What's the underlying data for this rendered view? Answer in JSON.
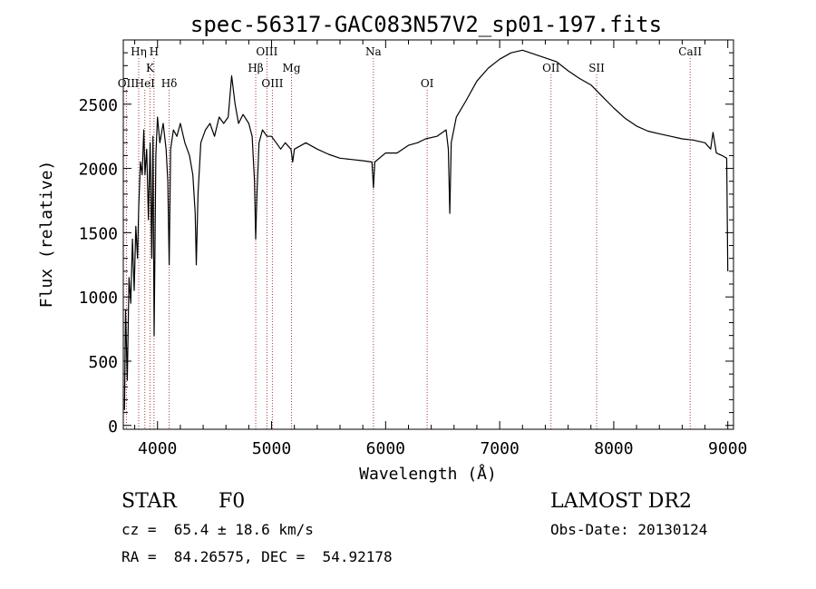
{
  "chart_data": {
    "type": "line",
    "title": "spec-56317-GAC083N57V2_sp01-197.fits",
    "xlabel": "Wavelength (Å)",
    "ylabel": "Flux (relative)",
    "xlim": [
      3700,
      9050
    ],
    "ylim": [
      -30,
      3000
    ],
    "xticks": [
      4000,
      5000,
      6000,
      7000,
      8000,
      9000
    ],
    "yticks": [
      0,
      500,
      1000,
      1500,
      2000,
      2500
    ],
    "grid": false,
    "line_color": "#000000",
    "marker_color": "#a33a3a",
    "lines": [
      {
        "label": "OII",
        "x": 3727,
        "row": 3
      },
      {
        "label": "Hη",
        "x": 3835,
        "row": 1
      },
      {
        "label": "HeI",
        "x": 3889,
        "row": 3
      },
      {
        "label": "K",
        "x": 3934,
        "row": 2
      },
      {
        "label": "H",
        "x": 3969,
        "row": 1
      },
      {
        "label": "Hδ",
        "x": 4102,
        "row": 3
      },
      {
        "label": "Hβ",
        "x": 4861,
        "row": 2
      },
      {
        "label": "OIII",
        "x": 4959,
        "row": 1
      },
      {
        "label": "OIII",
        "x": 5007,
        "row": 3
      },
      {
        "label": "Mg",
        "x": 5175,
        "row": 2
      },
      {
        "label": "Na",
        "x": 5893,
        "row": 1
      },
      {
        "label": "OI",
        "x": 6364,
        "row": 3
      },
      {
        "label": "OII",
        "x": 7450,
        "row": 2
      },
      {
        "label": "SII",
        "x": 7850,
        "row": 2
      },
      {
        "label": "CaII",
        "x": 8670,
        "row": 1
      }
    ],
    "series": [
      {
        "points": [
          [
            3710,
            120
          ],
          [
            3720,
            900
          ],
          [
            3735,
            350
          ],
          [
            3750,
            1150
          ],
          [
            3765,
            950
          ],
          [
            3780,
            1450
          ],
          [
            3795,
            1050
          ],
          [
            3810,
            1550
          ],
          [
            3825,
            1300
          ],
          [
            3835,
            1700
          ],
          [
            3850,
            2050
          ],
          [
            3865,
            1950
          ],
          [
            3880,
            2300
          ],
          [
            3890,
            1950
          ],
          [
            3905,
            2150
          ],
          [
            3920,
            1600
          ],
          [
            3935,
            2200
          ],
          [
            3950,
            1300
          ],
          [
            3960,
            2250
          ],
          [
            3970,
            700
          ],
          [
            3985,
            2100
          ],
          [
            4000,
            2400
          ],
          [
            4020,
            2200
          ],
          [
            4050,
            2350
          ],
          [
            4075,
            2150
          ],
          [
            4090,
            1900
          ],
          [
            4102,
            1250
          ],
          [
            4115,
            2150
          ],
          [
            4140,
            2300
          ],
          [
            4170,
            2250
          ],
          [
            4200,
            2350
          ],
          [
            4240,
            2200
          ],
          [
            4280,
            2100
          ],
          [
            4310,
            1950
          ],
          [
            4330,
            1650
          ],
          [
            4340,
            1250
          ],
          [
            4355,
            1800
          ],
          [
            4380,
            2200
          ],
          [
            4420,
            2300
          ],
          [
            4460,
            2350
          ],
          [
            4500,
            2250
          ],
          [
            4540,
            2400
          ],
          [
            4580,
            2350
          ],
          [
            4620,
            2400
          ],
          [
            4650,
            2720
          ],
          [
            4680,
            2500
          ],
          [
            4710,
            2350
          ],
          [
            4750,
            2420
          ],
          [
            4800,
            2350
          ],
          [
            4830,
            2250
          ],
          [
            4850,
            1900
          ],
          [
            4861,
            1450
          ],
          [
            4872,
            1800
          ],
          [
            4890,
            2200
          ],
          [
            4920,
            2300
          ],
          [
            4960,
            2250
          ],
          [
            5000,
            2250
          ],
          [
            5040,
            2200
          ],
          [
            5080,
            2150
          ],
          [
            5120,
            2200
          ],
          [
            5170,
            2150
          ],
          [
            5185,
            2050
          ],
          [
            5200,
            2150
          ],
          [
            5300,
            2200
          ],
          [
            5400,
            2150
          ],
          [
            5500,
            2110
          ],
          [
            5600,
            2080
          ],
          [
            5700,
            2070
          ],
          [
            5800,
            2060
          ],
          [
            5880,
            2050
          ],
          [
            5893,
            1850
          ],
          [
            5905,
            2050
          ],
          [
            6000,
            2120
          ],
          [
            6100,
            2120
          ],
          [
            6200,
            2180
          ],
          [
            6280,
            2200
          ],
          [
            6350,
            2230
          ],
          [
            6450,
            2250
          ],
          [
            6530,
            2300
          ],
          [
            6550,
            2150
          ],
          [
            6563,
            1650
          ],
          [
            6575,
            2200
          ],
          [
            6620,
            2400
          ],
          [
            6700,
            2520
          ],
          [
            6800,
            2680
          ],
          [
            6900,
            2780
          ],
          [
            7000,
            2850
          ],
          [
            7100,
            2900
          ],
          [
            7200,
            2920
          ],
          [
            7300,
            2890
          ],
          [
            7400,
            2860
          ],
          [
            7500,
            2830
          ],
          [
            7600,
            2760
          ],
          [
            7700,
            2700
          ],
          [
            7800,
            2650
          ],
          [
            7900,
            2560
          ],
          [
            8000,
            2470
          ],
          [
            8100,
            2390
          ],
          [
            8200,
            2330
          ],
          [
            8300,
            2290
          ],
          [
            8400,
            2270
          ],
          [
            8500,
            2250
          ],
          [
            8600,
            2230
          ],
          [
            8700,
            2220
          ],
          [
            8800,
            2200
          ],
          [
            8850,
            2150
          ],
          [
            8870,
            2280
          ],
          [
            8900,
            2120
          ],
          [
            8950,
            2100
          ],
          [
            8990,
            2080
          ],
          [
            9000,
            1200
          ]
        ]
      }
    ]
  },
  "footer": {
    "object_class": "STAR",
    "subclass": "F0",
    "survey": "LAMOST DR2",
    "redshift": "cz =  65.4 ± 18.6 km/s",
    "obs_date": "Obs-Date: 20130124",
    "coords": "RA =  84.26575, DEC =  54.92178"
  }
}
